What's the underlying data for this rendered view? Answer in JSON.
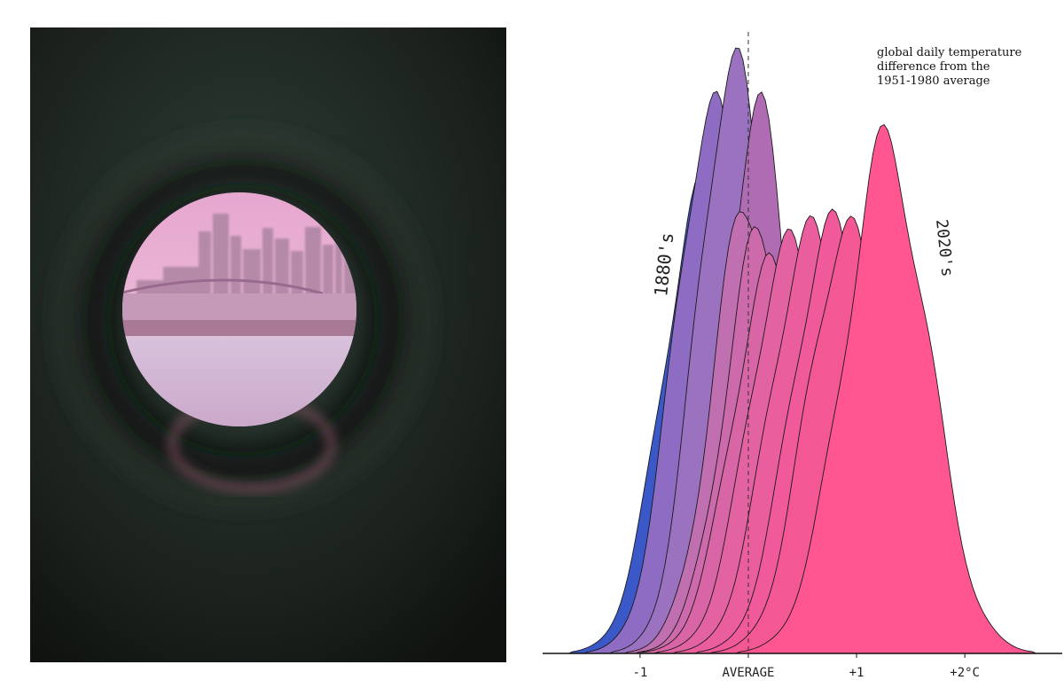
{
  "chart_data": {
    "type": "area",
    "title": "",
    "annotation_lines": [
      "global daily temperature",
      "difference from the",
      "1951-1980 average"
    ],
    "x_ticks": [
      {
        "value": -1,
        "label": "-1"
      },
      {
        "value": 0,
        "label": "AVERAGE"
      },
      {
        "value": 1,
        "label": "+1"
      },
      {
        "value": 2,
        "label": "+2°C"
      }
    ],
    "xlim": [
      -1.9,
      2.9
    ],
    "reference_line": {
      "value": 0,
      "style": "dashed"
    },
    "series_labels": {
      "first": "1880's",
      "last": "2020's"
    },
    "series": [
      {
        "decade_index": 0,
        "color": "#3a58c8",
        "peak_x": -0.45,
        "spread": 0.35,
        "peak_height": 0.73
      },
      {
        "decade_index": 1,
        "color": "#8e6cc4",
        "peak_x": -0.35,
        "spread": 0.33,
        "peak_height": 0.88
      },
      {
        "decade_index": 2,
        "color": "#9b72c0",
        "peak_x": -0.15,
        "spread": 0.32,
        "peak_height": 0.95
      },
      {
        "decade_index": 3,
        "color": "#b06cb2",
        "peak_x": 0.08,
        "spread": 0.3,
        "peak_height": 0.87
      },
      {
        "decade_index": 4,
        "color": "#c070b0",
        "peak_x": 0.0,
        "spread": 0.33,
        "peak_height": 0.72
      },
      {
        "decade_index": 5,
        "color": "#cc6aac",
        "peak_x": 0.1,
        "spread": 0.33,
        "peak_height": 0.66
      },
      {
        "decade_index": 6,
        "color": "#d866a6",
        "peak_x": 0.18,
        "spread": 0.34,
        "peak_height": 0.61
      },
      {
        "decade_index": 7,
        "color": "#e362a2",
        "peak_x": 0.35,
        "spread": 0.35,
        "peak_height": 0.65
      },
      {
        "decade_index": 8,
        "color": "#ea5e9e",
        "peak_x": 0.55,
        "spread": 0.36,
        "peak_height": 0.67
      },
      {
        "decade_index": 9,
        "color": "#f05a9a",
        "peak_x": 0.75,
        "spread": 0.36,
        "peak_height": 0.68
      },
      {
        "decade_index": 10,
        "color": "#f45894",
        "peak_x": 0.9,
        "spread": 0.36,
        "peak_height": 0.68
      },
      {
        "decade_index": 11,
        "color": "#ff5591",
        "peak_x": 1.28,
        "spread": 0.4,
        "peak_height": 0.81
      }
    ]
  },
  "photo": {
    "subject": "city-skyline-through-peephole",
    "colors": {
      "tint": "#e8b8d8",
      "dark": "#1c221d"
    }
  }
}
